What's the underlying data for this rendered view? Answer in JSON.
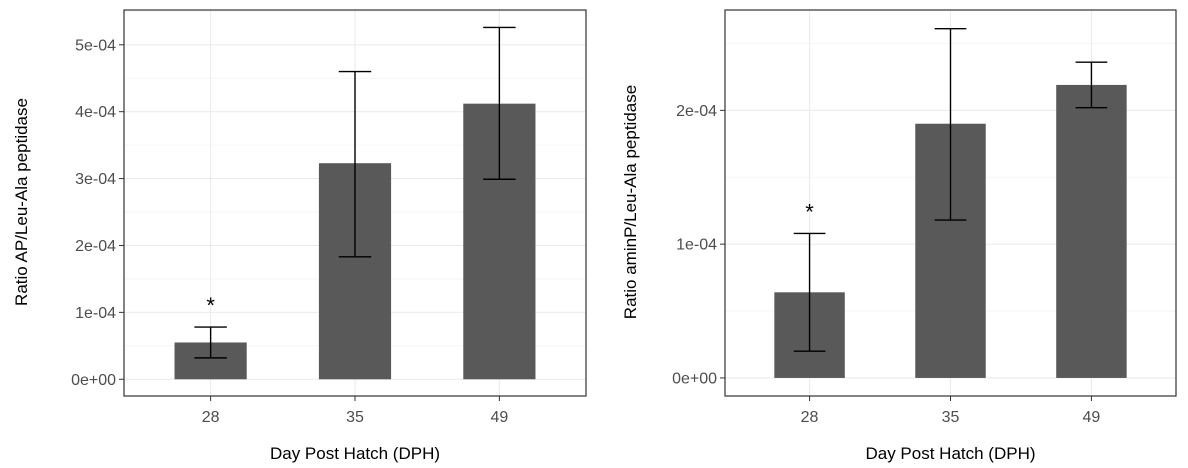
{
  "chart_data": [
    {
      "type": "bar",
      "categories": [
        "28",
        "35",
        "49"
      ],
      "values": [
        5.5e-05,
        0.000323,
        0.000412
      ],
      "error_low": [
        3.2e-05,
        0.000183,
        0.000299
      ],
      "error_high": [
        7.8e-05,
        0.00046,
        0.000526
      ],
      "annotations": [
        "*",
        "",
        ""
      ],
      "xlabel": "Day Post Hatch (DPH)",
      "ylabel": "Ratio AP/Leu-Ala peptidase",
      "ylim": [
        -2.5e-05,
        0.000552
      ],
      "yticks": [
        0,
        0.0001,
        0.0002,
        0.0003,
        0.0004,
        0.0005
      ],
      "ytick_labels": [
        "0e+00",
        "1e-04",
        "2e-04",
        "3e-04",
        "4e-04",
        "5e-04"
      ],
      "grid": true,
      "color": "#595959"
    },
    {
      "type": "bar",
      "categories": [
        "28",
        "35",
        "49"
      ],
      "values": [
        6.4e-05,
        0.00019,
        0.000219
      ],
      "error_low": [
        2e-05,
        0.000118,
        0.000202
      ],
      "error_high": [
        0.000108,
        0.000261,
        0.000236
      ],
      "annotations": [
        "*",
        "",
        ""
      ],
      "xlabel": "Day Post Hatch (DPH)",
      "ylabel": "Ratio aminP/Leu-Ala peptidase",
      "ylim": [
        -1.35e-05,
        0.000275
      ],
      "yticks": [
        0,
        0.0001,
        0.0002
      ],
      "ytick_labels": [
        "0e+00",
        "1e-04",
        "2e-04"
      ],
      "grid": true,
      "color": "#595959"
    }
  ]
}
